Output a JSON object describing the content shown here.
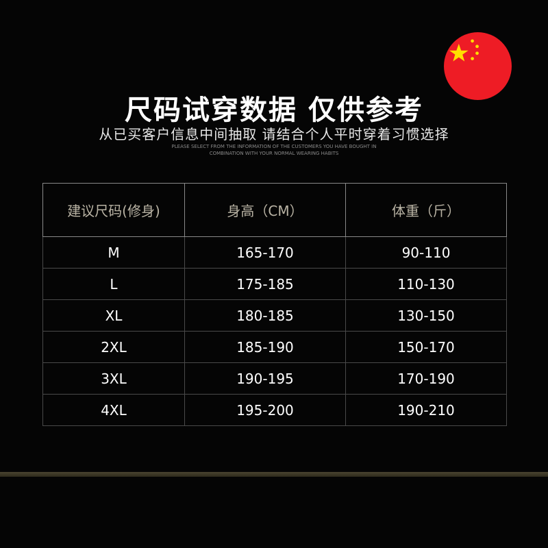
{
  "title": "尺码试穿数据 仅供参考",
  "subtitle": "从已买客户信息中间抽取 请结合个人平时穿着习惯选择",
  "english_note": [
    "PLEASE SELECT FROM THE INFORMATION OF THE CUSTOMERS YOU HAVE BOUGHT IN",
    "COMBINATION WITH YOUR NORMAL WEARING HABITS"
  ],
  "flag_icon": "china-flag-icon",
  "colors": {
    "flag_red": "#ee1c25",
    "flag_yellow": "#ffde00",
    "header_text": "#b9b3a4",
    "accent_line": "#3a3424"
  },
  "table": {
    "headers": [
      "建议尺码(修身)",
      "身高（CM）",
      "体重（斤）"
    ],
    "rows": [
      [
        "M",
        "165-170",
        "90-110"
      ],
      [
        "L",
        "175-185",
        "110-130"
      ],
      [
        "XL",
        "180-185",
        "130-150"
      ],
      [
        "2XL",
        "185-190",
        "150-170"
      ],
      [
        "3XL",
        "190-195",
        "170-190"
      ],
      [
        "4XL",
        "195-200",
        "190-210"
      ]
    ]
  }
}
